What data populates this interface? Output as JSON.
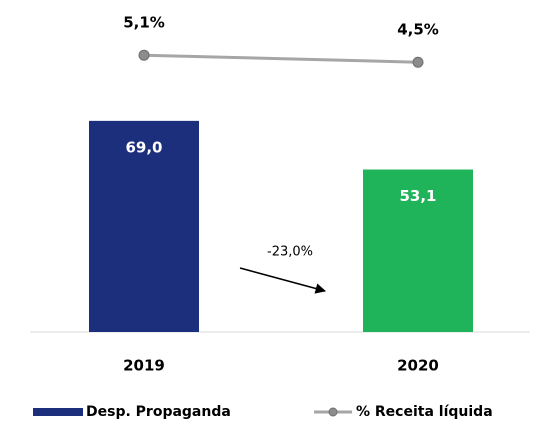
{
  "chart_data": {
    "type": "bar",
    "categories": [
      "2019",
      "2020"
    ],
    "series": [
      {
        "name": "Desp. Propaganda",
        "type": "bar",
        "colors": [
          "#1c2f7c",
          "#1fb45a"
        ],
        "color": "#1c2f7c",
        "values": [
          69.0,
          53.1
        ],
        "value_labels": [
          "69,0",
          "53,1"
        ]
      },
      {
        "name": "% Receita líquida",
        "type": "line",
        "axis": "y2",
        "color": "#a6a6a6",
        "values": [
          5.1,
          4.5
        ],
        "value_labels": [
          "5,1%",
          "4,5%"
        ]
      }
    ],
    "ylim": [
      0,
      100
    ],
    "y2lim": [
      -18.6,
      7.6
    ],
    "annotation": "-23,0%"
  }
}
